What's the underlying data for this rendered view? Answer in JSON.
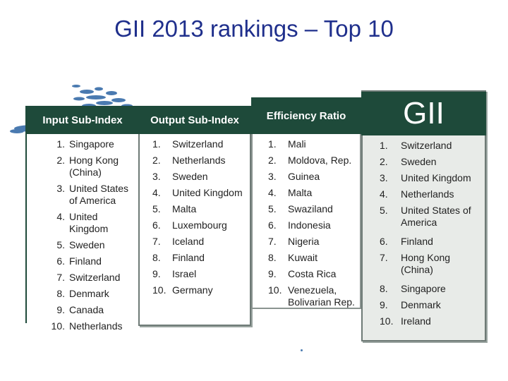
{
  "title": "GII 2013 rankings – Top 10",
  "colors": {
    "header_bg": "#1e4a3a",
    "title": "#1f2f8c",
    "gii_bg": "#e8ebe8",
    "map_blue": "#4a7ab0"
  },
  "panels": {
    "input": {
      "header": "Input Sub-Index",
      "items": [
        {
          "n": "1.",
          "t": "Singapore"
        },
        {
          "n": "2.",
          "t": "Hong Kong (China)"
        },
        {
          "n": "3.",
          "t": "United States of America"
        },
        {
          "n": "4.",
          "t": "United Kingdom"
        },
        {
          "n": "5.",
          "t": "Sweden"
        },
        {
          "n": "6.",
          "t": "Finland"
        },
        {
          "n": "7.",
          "t": "Switzerland"
        },
        {
          "n": "8.",
          "t": "Denmark"
        },
        {
          "n": "9.",
          "t": "Canada"
        },
        {
          "n": "10.",
          "t": "Netherlands"
        }
      ]
    },
    "output": {
      "header": "Output Sub-Index",
      "items": [
        {
          "n": "1.",
          "t": "Switzerland"
        },
        {
          "n": "2.",
          "t": "Netherlands"
        },
        {
          "n": "3.",
          "t": "Sweden"
        },
        {
          "n": "4.",
          "t": "United Kingdom"
        },
        {
          "n": "5.",
          "t": "Malta"
        },
        {
          "n": "6.",
          "t": "Luxembourg"
        },
        {
          "n": "7.",
          "t": "Iceland"
        },
        {
          "n": "8.",
          "t": "Finland"
        },
        {
          "n": "9.",
          "t": "Israel"
        },
        {
          "n": "10.",
          "t": "Germany"
        }
      ]
    },
    "efficiency": {
      "header": "Efficiency Ratio",
      "items": [
        {
          "n": "1.",
          "t": "Mali"
        },
        {
          "n": "2.",
          "t": "Moldova, Rep."
        },
        {
          "n": "3.",
          "t": "Guinea"
        },
        {
          "n": "4.",
          "t": "Malta"
        },
        {
          "n": "5.",
          "t": "Swaziland"
        },
        {
          "n": "6.",
          "t": "Indonesia"
        },
        {
          "n": "7.",
          "t": "Nigeria"
        },
        {
          "n": "8.",
          "t": "Kuwait"
        },
        {
          "n": "9.",
          "t": "Costa Rica"
        },
        {
          "n": "10.",
          "t": "Venezuela, Bolivarian Rep."
        }
      ]
    },
    "gii": {
      "header": "GII",
      "items": [
        {
          "n": "1.",
          "t": "Switzerland"
        },
        {
          "n": "2.",
          "t": "Sweden"
        },
        {
          "n": "3.",
          "t": "United Kingdom"
        },
        {
          "n": "4.",
          "t": "Netherlands"
        },
        {
          "n": "5.",
          "t": "United States of America"
        },
        {
          "n": "6.",
          "t": "Finland"
        },
        {
          "n": "7.",
          "t": "Hong Kong (China)"
        },
        {
          "n": "8.",
          "t": "Singapore"
        },
        {
          "n": "9.",
          "t": "Denmark"
        },
        {
          "n": "10.",
          "t": "Ireland"
        }
      ]
    }
  }
}
